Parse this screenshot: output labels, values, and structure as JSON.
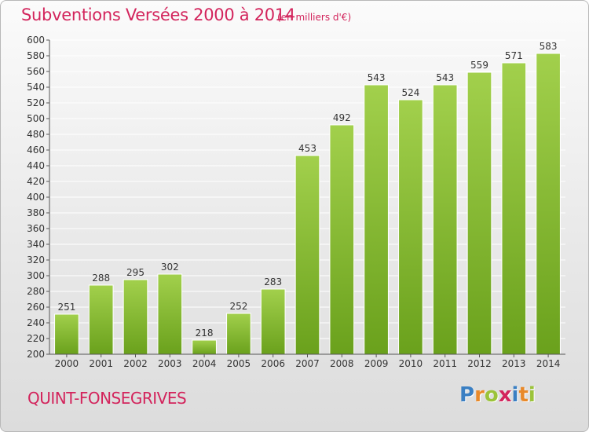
{
  "header": {
    "title": "Subventions Versées 2000 à 2014",
    "unit": "(en milliers d'€)"
  },
  "footer": {
    "commune": "QUINT-FONSEGRIVES",
    "logo_text": "Proxiti",
    "logo_colors": [
      "#3a7fc3",
      "#e8892a",
      "#9bc33a",
      "#d3245c",
      "#3a7fc3",
      "#e8892a",
      "#9bc33a"
    ]
  },
  "colors": {
    "bar_light": "#a2d04c",
    "bar_dark": "#6aa11c",
    "title": "#d3245c",
    "grid": "#ffffff",
    "axis": "#555555"
  },
  "chart_data": {
    "type": "bar",
    "title": "Subventions Versées 2000 à 2014",
    "subtitle": "(en milliers d'€)",
    "xlabel": "",
    "ylabel": "",
    "categories": [
      "2000",
      "2001",
      "2002",
      "2003",
      "2004",
      "2005",
      "2006",
      "2007",
      "2008",
      "2009",
      "2010",
      "2011",
      "2012",
      "2013",
      "2014"
    ],
    "values": [
      251,
      288,
      295,
      302,
      218,
      252,
      283,
      453,
      492,
      543,
      524,
      543,
      559,
      571,
      583
    ],
    "ylim": [
      200,
      600
    ],
    "ytick_step": 20,
    "grid": true,
    "data_labels": true,
    "legend": "none"
  }
}
